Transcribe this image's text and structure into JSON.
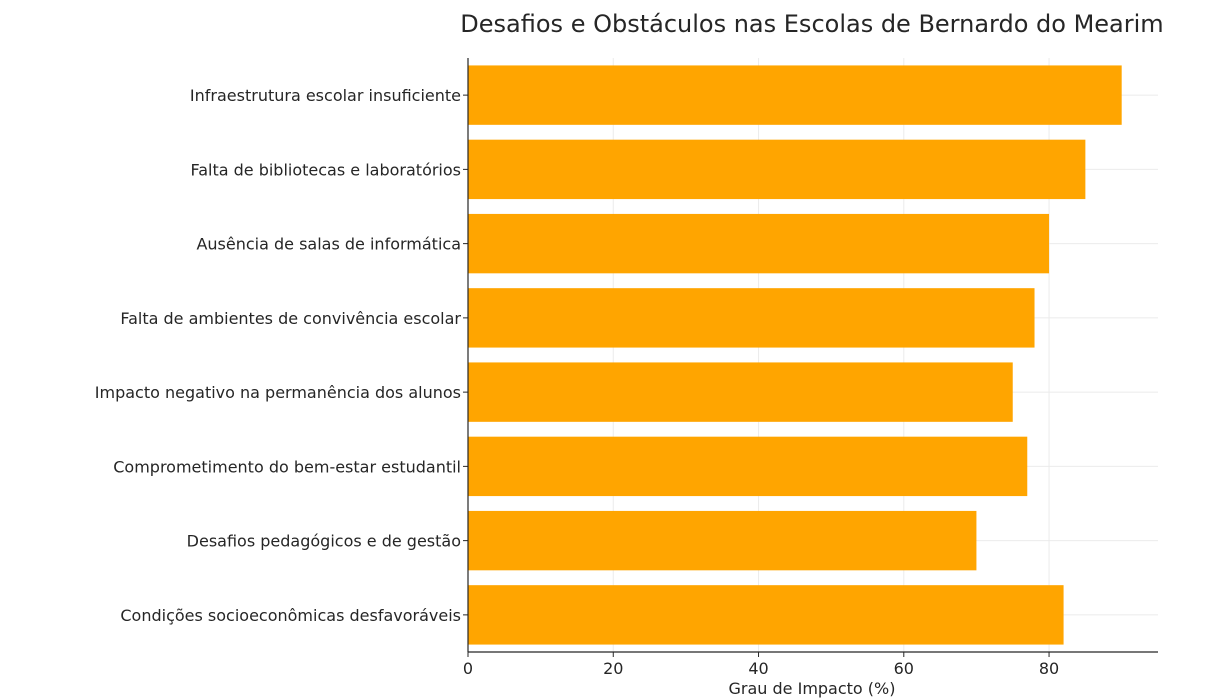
{
  "chart_data": {
    "type": "bar",
    "orientation": "horizontal",
    "title": "Desafios e Obstáculos nas Escolas de Bernardo do Mearim",
    "xlabel": "Grau de Impacto (%)",
    "ylabel": "",
    "xlim": [
      0,
      95
    ],
    "xticks": [
      0,
      20,
      40,
      60,
      80
    ],
    "grid": true,
    "bar_color": "#FFA500",
    "grid_color": "#ebebeb",
    "axis_color": "#262626",
    "categories": [
      "Infraestrutura escolar insuficiente",
      "Falta de bibliotecas e laboratórios",
      "Ausência de salas de informática",
      "Falta de ambientes de convivência escolar",
      "Impacto negativo na permanência dos alunos",
      "Comprometimento do bem-estar estudantil",
      "Desafios pedagógicos e de gestão",
      "Condições socioeconômicas desfavoráveis"
    ],
    "values": [
      90,
      85,
      80,
      78,
      75,
      77,
      70,
      82
    ]
  }
}
